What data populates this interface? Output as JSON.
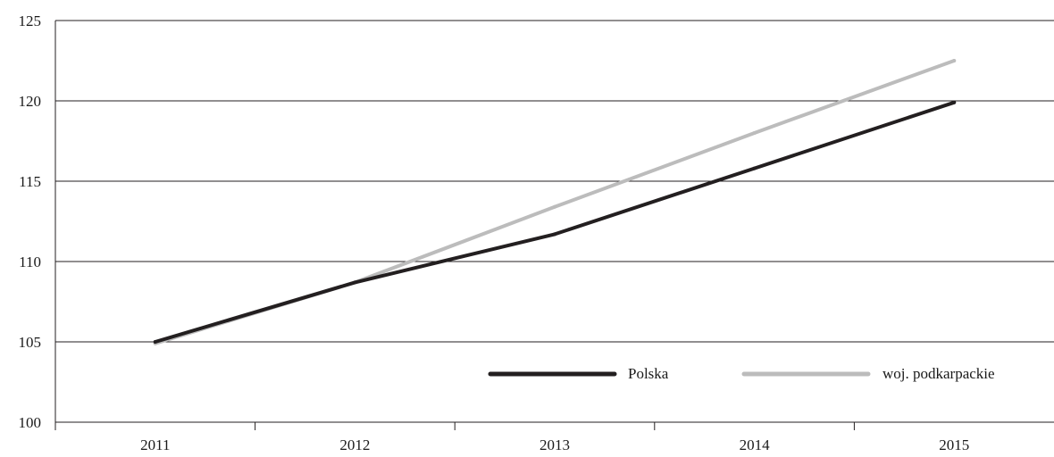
{
  "chart_data": {
    "type": "line",
    "title": "",
    "xlabel": "",
    "ylabel": "",
    "categories": [
      "2011",
      "2012",
      "2013",
      "2014",
      "2015"
    ],
    "ylim": [
      100,
      125
    ],
    "yticks": [
      "100",
      "105",
      "110",
      "115",
      "120",
      "125"
    ],
    "grid": true,
    "legend_position": "bottom-right",
    "series": [
      {
        "name": "Polska",
        "values": [
          105.0,
          108.7,
          111.7,
          115.8,
          119.9
        ],
        "color": "#231f20"
      },
      {
        "name": "woj. podkarpackie",
        "values": [
          104.9,
          108.7,
          113.4,
          118.0,
          122.5
        ],
        "color": "#bcbcbc"
      }
    ]
  }
}
